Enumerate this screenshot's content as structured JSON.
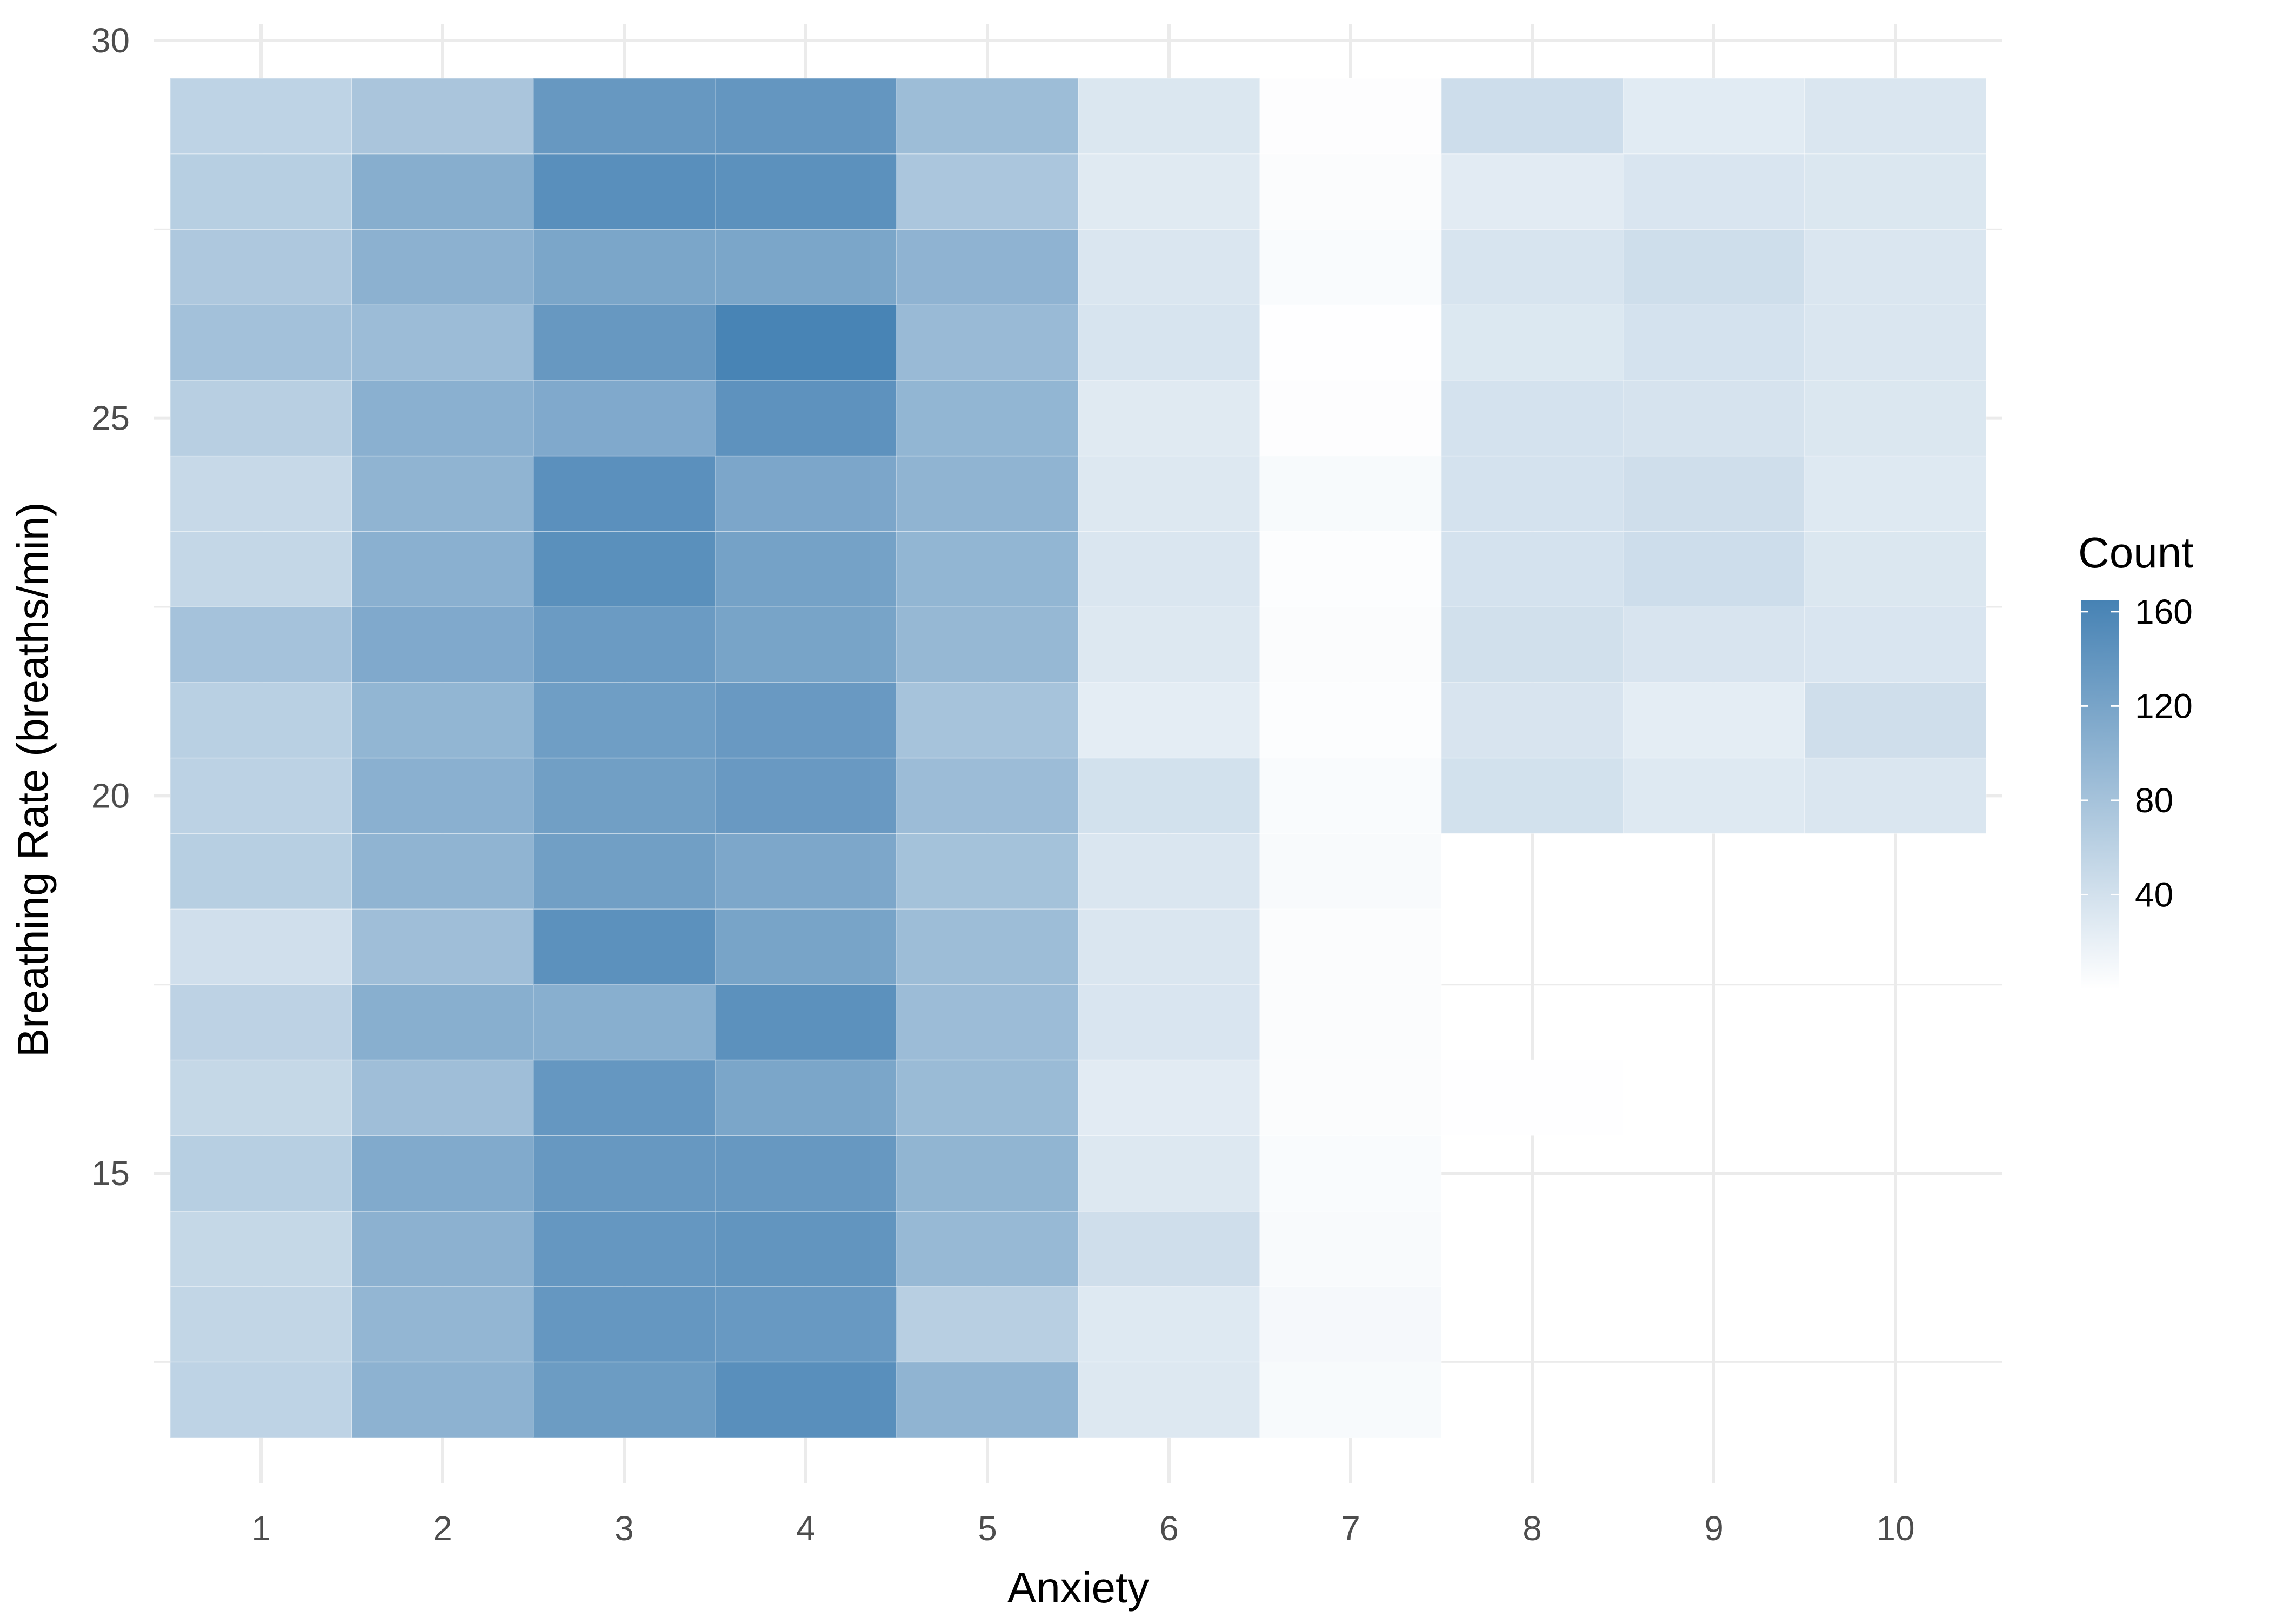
{
  "chart_data": {
    "type": "heatmap",
    "title": "",
    "xlabel": "Anxiety",
    "ylabel": "Breathing Rate (breaths/min)",
    "x_categories": [
      1,
      2,
      3,
      4,
      5,
      6,
      7,
      8,
      9,
      10
    ],
    "y_values": [
      12,
      13,
      14,
      15,
      16,
      17,
      18,
      19,
      20,
      21,
      22,
      23,
      24,
      25,
      26,
      27,
      28,
      29
    ],
    "x_ticks": [
      "1",
      "2",
      "3",
      "4",
      "5",
      "6",
      "7",
      "8",
      "9",
      "10"
    ],
    "y_ticks": [
      15,
      20,
      25,
      30
    ],
    "y_tick_labels": [
      "15",
      "20",
      "25",
      "30"
    ],
    "ylim": [
      11,
      30
    ],
    "grid": true,
    "cell_fill_note": null,
    "columns": [
      {
        "x": 1,
        "counts": [
          58,
          54,
          52,
          64,
          52,
          59,
          42,
          64,
          60,
          62,
          80,
          53,
          50,
          63,
          82,
          72,
          64,
          58
        ]
      },
      {
        "x": 2,
        "counts": [
          102,
          96,
          103,
          112,
          86,
          106,
          86,
          99,
          104,
          97,
          113,
          104,
          99,
          104,
          88,
          103,
          107,
          76
        ]
      },
      {
        "x": 3,
        "counts": [
          131,
          137,
          137,
          136,
          137,
          106,
          145,
          127,
          127,
          128,
          132,
          147,
          146,
          113,
          136,
          118,
          148,
          136
        ]
      },
      {
        "x": 4,
        "counts": [
          148,
          135,
          140,
          136,
          118,
          145,
          120,
          116,
          134,
          134,
          120,
          123,
          117,
          144,
          163,
          118,
          145,
          138
        ]
      },
      {
        "x": 5,
        "counts": [
          99,
          63,
          93,
          98,
          90,
          88,
          87,
          81,
          88,
          79,
          94,
          97,
          99,
          97,
          91,
          100,
          75,
          87
        ]
      },
      {
        "x": 6,
        "counts": [
          30,
          29,
          43,
          30,
          26,
          34,
          33,
          33,
          40,
          24,
          30,
          33,
          30,
          28,
          36,
          33,
          28,
          32
        ]
      },
      {
        "x": 7,
        "counts": [
          7,
          9,
          6,
          5,
          4,
          4,
          4,
          6,
          5,
          3,
          4,
          3,
          7,
          2,
          1,
          5,
          4,
          2
        ]
      },
      {
        "x": 8,
        "counts": [
          null,
          null,
          null,
          null,
          1,
          null,
          null,
          null,
          40,
          35,
          41,
          38,
          38,
          38,
          31,
          36,
          26,
          45
        ]
      },
      {
        "x": 9,
        "counts": [
          null,
          null,
          null,
          null,
          null,
          null,
          null,
          null,
          29,
          24,
          35,
          45,
          43,
          37,
          38,
          44,
          34,
          27
        ]
      },
      {
        "x": 10,
        "counts": [
          null,
          null,
          null,
          null,
          null,
          null,
          null,
          null,
          33,
          43,
          34,
          32,
          29,
          32,
          33,
          33,
          32,
          33
        ]
      }
    ],
    "legend": {
      "title": "Count",
      "position": "right",
      "breaks": [
        40,
        80,
        120,
        160
      ],
      "labels": [
        "40",
        "80",
        "120",
        "160"
      ],
      "min": 0,
      "max": 165,
      "low_color": "#ffffff",
      "high_color": "#4682b4"
    },
    "colors": {
      "background": "#ffffff",
      "grid": "#ebebeb",
      "tick_text": "#4d4d4d",
      "title_text": "#000000"
    }
  }
}
